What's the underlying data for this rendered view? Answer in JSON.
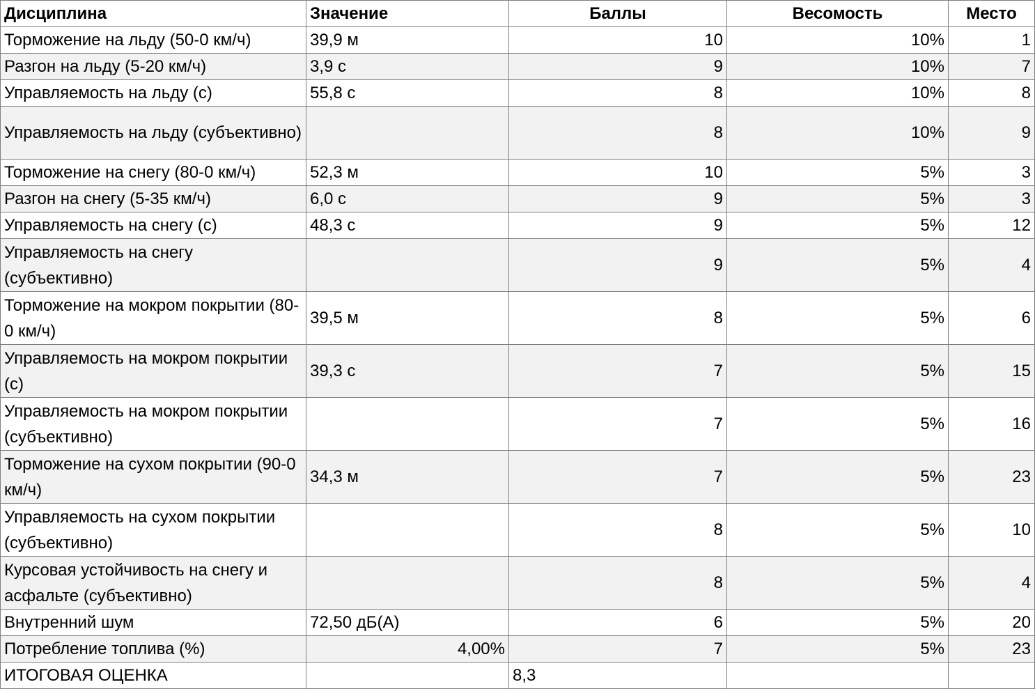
{
  "headers": {
    "discipline": "Дисциплина",
    "value": "Значение",
    "score": "Баллы",
    "weight": "Весомость",
    "place": "Место"
  },
  "rows": [
    {
      "discipline": "Торможение на льду (50-0 км/ч)",
      "value": "39,9 м",
      "score": "10",
      "weight": "10%",
      "place": "1"
    },
    {
      "discipline": "Разгон на льду (5-20 км/ч)",
      "value": "3,9 с",
      "score": "9",
      "weight": "10%",
      "place": "7"
    },
    {
      "discipline": "Управляемость на льду (с)",
      "value": "55,8 с",
      "score": "8",
      "weight": "10%",
      "place": "8"
    },
    {
      "discipline": "Управляемость на льду (субъективно)",
      "value": "",
      "score": "8",
      "weight": "10%",
      "place": "9"
    },
    {
      "discipline": "Торможение на снегу (80-0 км/ч)",
      "value": "52,3 м",
      "score": "10",
      "weight": "5%",
      "place": "3"
    },
    {
      "discipline": "Разгон на снегу (5-35 км/ч)",
      "value": "6,0 с",
      "score": "9",
      "weight": "5%",
      "place": "3"
    },
    {
      "discipline": "Управляемость на снегу (с)",
      "value": "48,3 с",
      "score": "9",
      "weight": "5%",
      "place": "12"
    },
    {
      "discipline": "Управляемость на снегу (субъективно)",
      "value": "",
      "score": "9",
      "weight": "5%",
      "place": "4"
    },
    {
      "discipline": "Торможение на мокром покрытии (80-0 км/ч)",
      "value": "39,5 м",
      "score": "8",
      "weight": "5%",
      "place": "6"
    },
    {
      "discipline": "Управляемость на мокром покрытии (с)",
      "value": "39,3 с",
      "score": "7",
      "weight": "5%",
      "place": "15"
    },
    {
      "discipline": "Управляемость на мокром покрытии (субъективно)",
      "value": "",
      "score": "7",
      "weight": "5%",
      "place": "16"
    },
    {
      "discipline": "Торможение на сухом покрытии (90-0 км/ч)",
      "value": "34,3 м",
      "score": "7",
      "weight": "5%",
      "place": "23"
    },
    {
      "discipline": "Управляемость на сухом покрытии (субъективно)",
      "value": "",
      "score": "8",
      "weight": "5%",
      "place": "10"
    },
    {
      "discipline": "Курсовая устойчивость на снегу и асфальте (субъективно)",
      "value": "",
      "score": "8",
      "weight": "5%",
      "place": "4"
    },
    {
      "discipline": "Внутренний шум",
      "value": "72,50 дБ(А)",
      "score": "6",
      "weight": "5%",
      "place": "20"
    },
    {
      "discipline": "Потребление топлива (%)",
      "value": "4,00%",
      "score": "7",
      "weight": "5%",
      "place": "23"
    }
  ],
  "total": {
    "discipline": "ИТОГОВАЯ ОЦЕНКА",
    "value": "",
    "score": "8,3",
    "weight": "",
    "place": ""
  }
}
